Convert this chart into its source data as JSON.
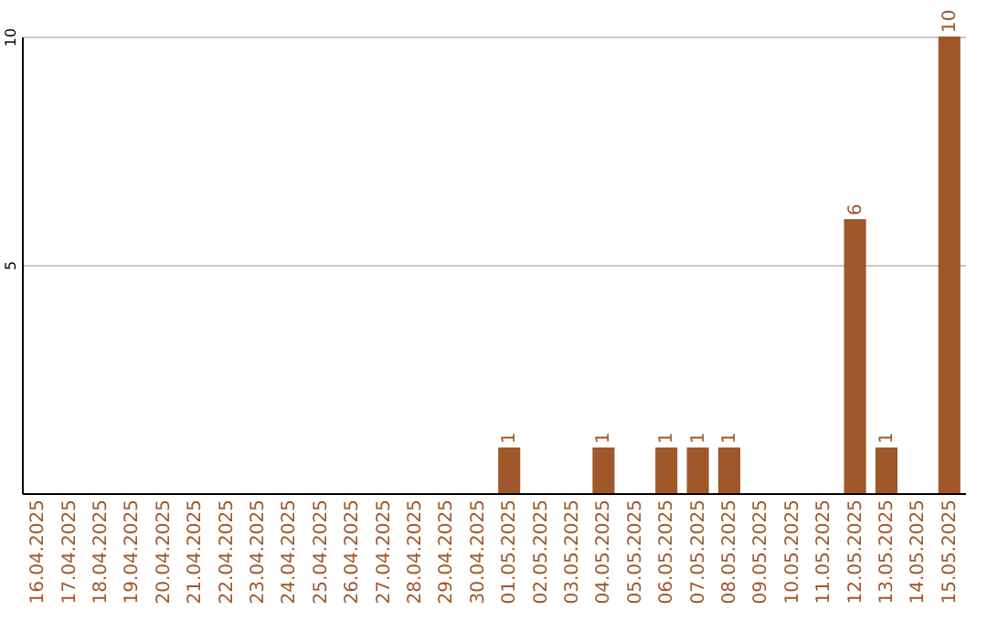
{
  "chart_data": {
    "type": "bar",
    "categories": [
      "16.04.2025",
      "17.04.2025",
      "18.04.2025",
      "19.04.2025",
      "20.04.2025",
      "21.04.2025",
      "22.04.2025",
      "23.04.2025",
      "24.04.2025",
      "25.04.2025",
      "26.04.2025",
      "27.04.2025",
      "28.04.2025",
      "29.04.2025",
      "30.04.2025",
      "01.05.2025",
      "02.05.2025",
      "03.05.2025",
      "04.05.2025",
      "05.05.2025",
      "06.05.2025",
      "07.05.2025",
      "08.05.2025",
      "09.05.2025",
      "10.05.2025",
      "11.05.2025",
      "12.05.2025",
      "13.05.2025",
      "14.05.2025",
      "15.05.2025"
    ],
    "values": [
      0,
      0,
      0,
      0,
      0,
      0,
      0,
      0,
      0,
      0,
      0,
      0,
      0,
      0,
      0,
      1,
      0,
      0,
      1,
      0,
      1,
      1,
      1,
      0,
      0,
      0,
      6,
      1,
      0,
      10
    ],
    "value_labels": [
      null,
      null,
      null,
      null,
      null,
      null,
      null,
      null,
      null,
      null,
      null,
      null,
      null,
      null,
      null,
      "1",
      null,
      null,
      "1",
      null,
      "1",
      "1",
      "1",
      null,
      null,
      null,
      "6",
      "1",
      null,
      "10"
    ],
    "color": "#a0572a",
    "ylim": [
      0,
      10
    ],
    "yticks": [
      5,
      10
    ],
    "grid": "y"
  }
}
